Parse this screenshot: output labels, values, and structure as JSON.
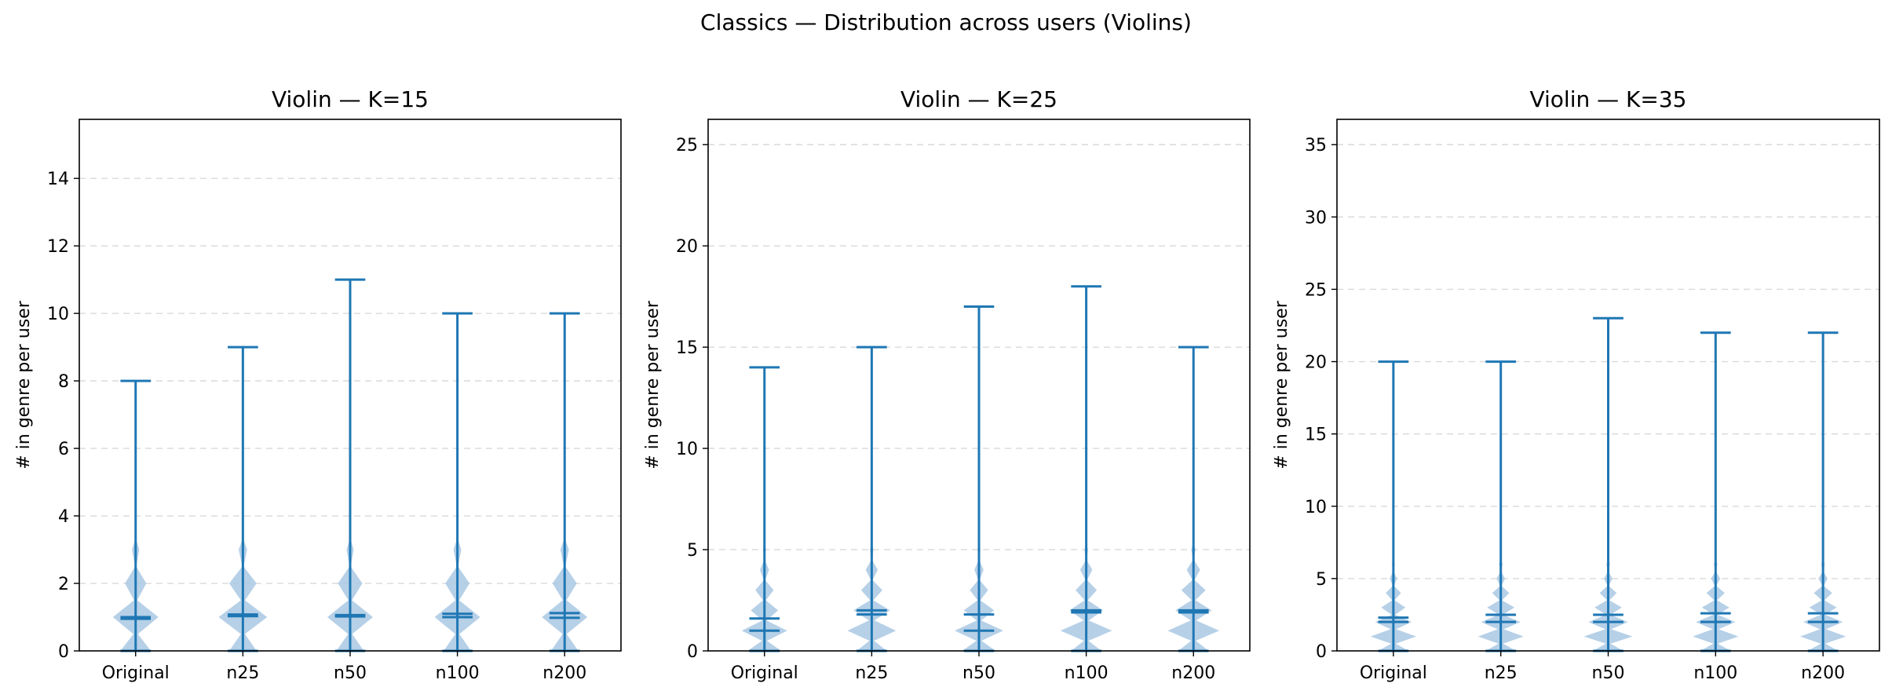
{
  "figure": {
    "suptitle": "Classics — Distribution across users (Violins)"
  },
  "colors": {
    "violin_fill": "#a9c8e3",
    "line": "#1f77b4",
    "grid": "#d9d9d9"
  },
  "chart_data": [
    {
      "type": "violin",
      "title": "Violin — K=15",
      "xlabel": "",
      "ylabel": "# in genre per user",
      "categories": [
        "Original",
        "n25",
        "n50",
        "n100",
        "n200"
      ],
      "ylim": [
        0,
        15.75
      ],
      "yticks": [
        0,
        2,
        4,
        6,
        8,
        10,
        12,
        14
      ],
      "grid": "y-dashed",
      "stats": [
        {
          "min": 0,
          "max": 8,
          "mean": 1.0,
          "median": 0.95
        },
        {
          "min": 0,
          "max": 9,
          "mean": 1.08,
          "median": 1.03
        },
        {
          "min": 0,
          "max": 11,
          "mean": 1.06,
          "median": 1.02
        },
        {
          "min": 0,
          "max": 10,
          "mean": 1.1,
          "median": 1.0
        },
        {
          "min": 0,
          "max": 10,
          "mean": 1.12,
          "median": 0.98
        }
      ],
      "density": [
        [
          [
            0,
            0.5
          ],
          [
            1,
            0.75
          ],
          [
            2,
            0.35
          ],
          [
            3,
            0.12
          ]
        ],
        [
          [
            0,
            0.45
          ],
          [
            1,
            0.8
          ],
          [
            2,
            0.45
          ],
          [
            3,
            0.14
          ]
        ],
        [
          [
            0,
            0.45
          ],
          [
            1,
            0.75
          ],
          [
            2,
            0.4
          ],
          [
            3,
            0.12
          ]
        ],
        [
          [
            0,
            0.45
          ],
          [
            1,
            0.75
          ],
          [
            2,
            0.4
          ],
          [
            3,
            0.13
          ]
        ],
        [
          [
            0,
            0.45
          ],
          [
            1,
            0.75
          ],
          [
            2,
            0.4
          ],
          [
            3,
            0.14
          ]
        ]
      ]
    },
    {
      "type": "violin",
      "title": "Violin — K=25",
      "xlabel": "",
      "ylabel": "# in genre per user",
      "categories": [
        "Original",
        "n25",
        "n50",
        "n100",
        "n200"
      ],
      "ylim": [
        0,
        26.25
      ],
      "yticks": [
        0,
        5,
        10,
        15,
        20,
        25
      ],
      "grid": "y-dashed",
      "stats": [
        {
          "min": 0,
          "max": 14,
          "mean": 1.6,
          "median": 1.0
        },
        {
          "min": 0,
          "max": 15,
          "mean": 2.0,
          "median": 1.8
        },
        {
          "min": 0,
          "max": 17,
          "mean": 1.8,
          "median": 1.0
        },
        {
          "min": 0,
          "max": 18,
          "mean": 2.0,
          "median": 1.9
        },
        {
          "min": 0,
          "max": 15,
          "mean": 2.0,
          "median": 1.9
        }
      ],
      "density": [
        [
          [
            0,
            0.55
          ],
          [
            1,
            0.75
          ],
          [
            2,
            0.45
          ],
          [
            3,
            0.3
          ],
          [
            4,
            0.15
          ],
          [
            5,
            0.05
          ]
        ],
        [
          [
            0,
            0.5
          ],
          [
            1,
            0.8
          ],
          [
            2,
            0.6
          ],
          [
            3,
            0.35
          ],
          [
            4,
            0.2
          ],
          [
            5,
            0.06
          ]
        ],
        [
          [
            0,
            0.55
          ],
          [
            1,
            0.8
          ],
          [
            2,
            0.5
          ],
          [
            3,
            0.3
          ],
          [
            4,
            0.15
          ],
          [
            5,
            0.05
          ]
        ],
        [
          [
            0,
            0.5
          ],
          [
            1,
            0.85
          ],
          [
            2,
            0.55
          ],
          [
            3,
            0.35
          ],
          [
            4,
            0.2
          ],
          [
            5,
            0.06
          ]
        ],
        [
          [
            0,
            0.5
          ],
          [
            1,
            0.85
          ],
          [
            2,
            0.6
          ],
          [
            3,
            0.4
          ],
          [
            4,
            0.22
          ],
          [
            5,
            0.07
          ]
        ]
      ]
    },
    {
      "type": "violin",
      "title": "Violin — K=35",
      "xlabel": "",
      "ylabel": "# in genre per user",
      "categories": [
        "Original",
        "n25",
        "n50",
        "n100",
        "n200"
      ],
      "ylim": [
        0,
        36.75
      ],
      "yticks": [
        0,
        5,
        10,
        15,
        20,
        25,
        30,
        35
      ],
      "grid": "y-dashed",
      "stats": [
        {
          "min": 0,
          "max": 20,
          "mean": 2.3,
          "median": 2.0
        },
        {
          "min": 0,
          "max": 20,
          "mean": 2.5,
          "median": 2.0
        },
        {
          "min": 0,
          "max": 23,
          "mean": 2.5,
          "median": 2.0
        },
        {
          "min": 0,
          "max": 22,
          "mean": 2.6,
          "median": 2.0
        },
        {
          "min": 0,
          "max": 22,
          "mean": 2.6,
          "median": 2.0
        }
      ],
      "density": [
        [
          [
            0,
            0.5
          ],
          [
            1,
            0.75
          ],
          [
            2,
            0.6
          ],
          [
            3,
            0.4
          ],
          [
            4,
            0.25
          ],
          [
            5,
            0.12
          ],
          [
            6,
            0.05
          ]
        ],
        [
          [
            0,
            0.5
          ],
          [
            1,
            0.75
          ],
          [
            2,
            0.65
          ],
          [
            3,
            0.45
          ],
          [
            4,
            0.28
          ],
          [
            5,
            0.14
          ],
          [
            6,
            0.06
          ]
        ],
        [
          [
            0,
            0.5
          ],
          [
            1,
            0.8
          ],
          [
            2,
            0.65
          ],
          [
            3,
            0.45
          ],
          [
            4,
            0.28
          ],
          [
            5,
            0.14
          ],
          [
            6,
            0.06
          ]
        ],
        [
          [
            0,
            0.5
          ],
          [
            1,
            0.75
          ],
          [
            2,
            0.65
          ],
          [
            3,
            0.45
          ],
          [
            4,
            0.3
          ],
          [
            5,
            0.15
          ],
          [
            6,
            0.06
          ]
        ],
        [
          [
            0,
            0.5
          ],
          [
            1,
            0.75
          ],
          [
            2,
            0.65
          ],
          [
            3,
            0.45
          ],
          [
            4,
            0.3
          ],
          [
            5,
            0.15
          ],
          [
            6,
            0.06
          ]
        ]
      ]
    }
  ]
}
